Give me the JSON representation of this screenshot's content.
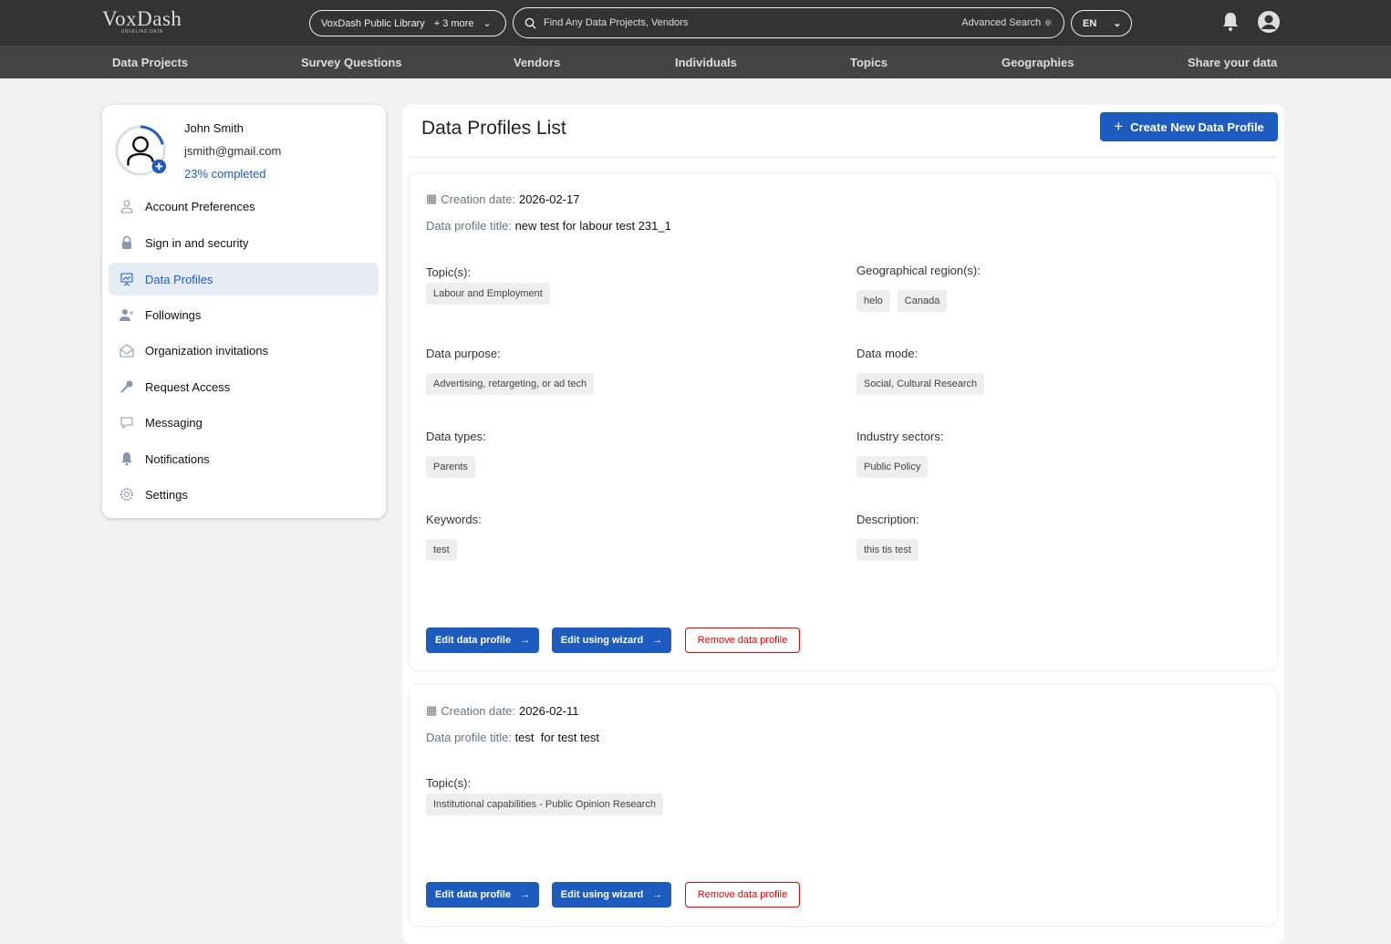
{
  "header": {
    "logo": "VoxDash",
    "logo_tagline": "UNVELING DATA",
    "library": "VoxDash Public Library",
    "library_more": "+ 3 more",
    "search_placeholder": "Find Any Data Projects, Vendors",
    "advanced_search": "Advanced Search",
    "language": "EN"
  },
  "nav": [
    "Data Projects",
    "Survey Questions",
    "Vendors",
    "Individuals",
    "Topics",
    "Geographies",
    "Share your data"
  ],
  "user": {
    "name": "John Smith",
    "email": "jsmith@gmail.com",
    "completion": "23% completed",
    "completion_pct": 23
  },
  "sidebar": [
    {
      "label": "Account Preferences",
      "icon": "user-icon"
    },
    {
      "label": "Sign in and security",
      "icon": "lock-icon"
    },
    {
      "label": "Data Profiles",
      "icon": "presentation-chart-icon",
      "active": true
    },
    {
      "label": "Followings",
      "icon": "user-plus-icon"
    },
    {
      "label": "Organization invitations",
      "icon": "envelope-icon"
    },
    {
      "label": "Request Access",
      "icon": "key-icon"
    },
    {
      "label": "Messaging",
      "icon": "chat-icon"
    },
    {
      "label": "Notifications",
      "icon": "bell-icon"
    },
    {
      "label": "Settings",
      "icon": "gear-icon"
    }
  ],
  "main": {
    "title": "Data Profiles List",
    "create_label": "Create New Data Profile",
    "creation_label": "Creation date:",
    "title_label": "Data profile title:",
    "edit_label": "Edit data profile",
    "wizard_label": "Edit using wizard",
    "remove_label": "Remove data profile",
    "labels": {
      "topics": "Topic(s):",
      "geo": "Geographical region(s):",
      "purpose": "Data purpose:",
      "mode": "Data mode:",
      "types": "Data types:",
      "sectors": "Industry sectors:",
      "keywords": "Keywords:",
      "description": "Description:"
    },
    "profiles": [
      {
        "date": "2026-02-17",
        "title": "new test for labour test 231_1",
        "topics": [
          "Labour and Employment"
        ],
        "geo": [
          "helo",
          "Canada"
        ],
        "purpose": [
          "Advertising, retargeting, or ad tech"
        ],
        "mode": [
          "Social, Cultural Research"
        ],
        "types": [
          "Parents"
        ],
        "sectors": [
          "Public Policy"
        ],
        "keywords": [
          "test"
        ],
        "description": [
          "this tis test"
        ]
      },
      {
        "date": "2026-02-11",
        "title": "test  for test test",
        "topics": [
          "Institutional capabilities - Public Opinion Research"
        ]
      }
    ]
  },
  "colors": {
    "accent": "#1e5bbf",
    "danger": "#e00000",
    "topbar": "#333333",
    "navbar": "#444444"
  }
}
